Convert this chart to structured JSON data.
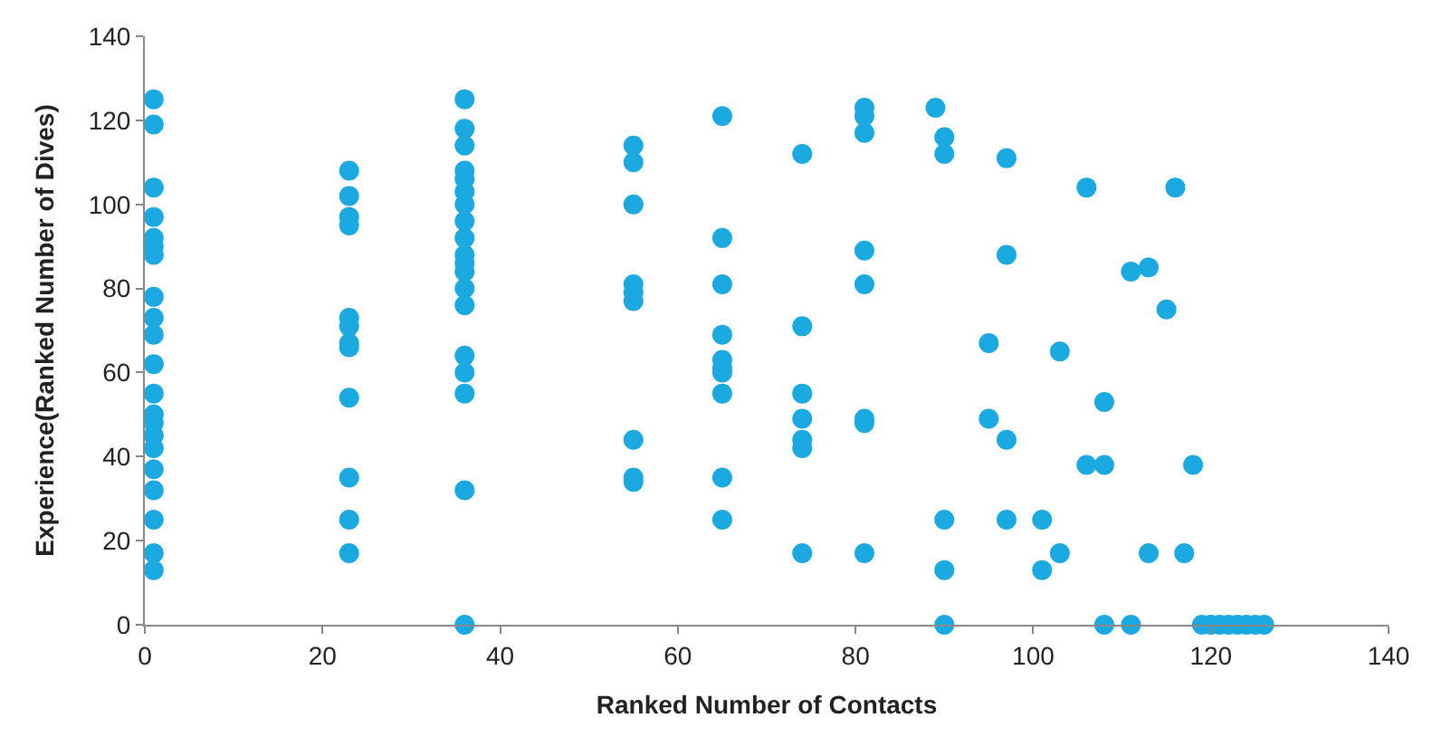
{
  "chart_data": {
    "type": "scatter",
    "xlabel": "Ranked Number of Contacts",
    "ylabel": "Experience(Ranked Number of Dives)",
    "x": [
      1,
      1,
      1,
      1,
      1,
      1,
      1,
      1,
      1,
      1,
      1,
      1,
      1,
      1,
      1,
      1,
      1,
      1,
      1,
      1,
      1,
      23,
      23,
      23,
      23,
      23,
      23,
      23,
      23,
      23,
      23,
      23,
      23,
      36,
      36,
      36,
      36,
      36,
      36,
      36,
      36,
      36,
      36,
      36,
      36,
      36,
      36,
      36,
      36,
      36,
      36,
      36,
      55,
      55,
      55,
      55,
      55,
      55,
      55,
      55,
      55,
      65,
      65,
      65,
      65,
      65,
      65,
      65,
      65,
      65,
      65,
      74,
      74,
      74,
      74,
      74,
      74,
      74,
      81,
      81,
      81,
      81,
      81,
      81,
      81,
      81,
      89,
      90,
      90,
      90,
      90,
      90,
      97,
      97,
      97,
      97,
      95,
      95,
      101,
      101,
      103,
      103,
      106,
      106,
      108,
      108,
      108,
      111,
      111,
      113,
      113,
      115,
      116,
      117,
      118,
      119,
      120,
      121,
      122,
      123,
      124,
      125,
      126
    ],
    "values": [
      125,
      119,
      104,
      97,
      92,
      90,
      88,
      78,
      73,
      69,
      62,
      55,
      50,
      48,
      45,
      42,
      37,
      32,
      25,
      17,
      13,
      108,
      102,
      97,
      95,
      73,
      71,
      67,
      66,
      54,
      35,
      25,
      17,
      125,
      118,
      114,
      108,
      106,
      103,
      100,
      96,
      92,
      88,
      86,
      84,
      80,
      76,
      64,
      60,
      55,
      32,
      0,
      114,
      110,
      100,
      81,
      79,
      77,
      44,
      35,
      34,
      121,
      92,
      81,
      69,
      63,
      61,
      60,
      55,
      35,
      25,
      112,
      71,
      55,
      49,
      44,
      42,
      17,
      123,
      121,
      117,
      89,
      81,
      49,
      48,
      17,
      123,
      116,
      112,
      25,
      13,
      0,
      111,
      88,
      44,
      25,
      67,
      49,
      25,
      13,
      65,
      17,
      104,
      38,
      53,
      38,
      0,
      84,
      0,
      85,
      17,
      75,
      104,
      17,
      38,
      0,
      0,
      0,
      0,
      0,
      0,
      0,
      0
    ],
    "color": "#1ba9e1",
    "marker": "circle",
    "grid": false,
    "legend": false,
    "xlim": [
      0,
      140
    ],
    "xticks": [
      0,
      20,
      40,
      60,
      80,
      100,
      120,
      140
    ],
    "ylim": [
      0,
      140
    ],
    "yticks": [
      0,
      20,
      40,
      60,
      80,
      100,
      120,
      140
    ]
  }
}
